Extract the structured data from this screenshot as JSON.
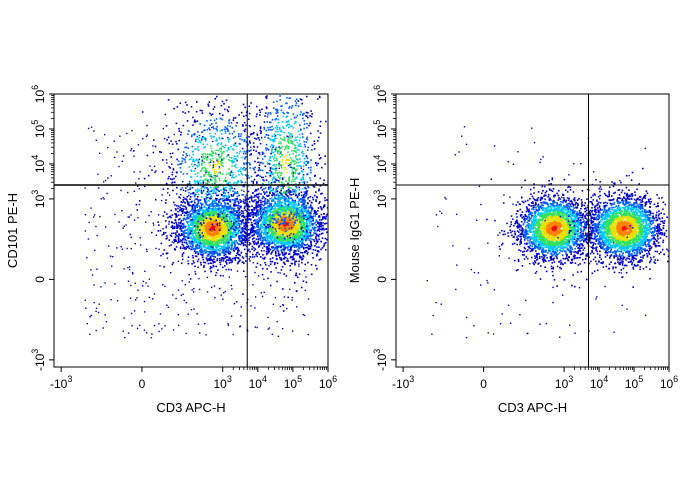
{
  "chart_data": [
    {
      "type": "scatter",
      "subtype": "flow-cytometry-density",
      "title": "",
      "xlabel": "CD3 APC-H",
      "ylabel": "CD101 PE-H",
      "x_ticks": [
        {
          "value": "-1e3",
          "base": "-10",
          "exp": "3"
        },
        {
          "value": "0",
          "base": "0",
          "exp": ""
        },
        {
          "value": "1e3",
          "base": "10",
          "exp": "3"
        },
        {
          "value": "1e4",
          "base": "10",
          "exp": "4"
        },
        {
          "value": "1e5",
          "base": "10",
          "exp": "5"
        },
        {
          "value": "1e6",
          "base": "10",
          "exp": "6"
        }
      ],
      "y_ticks": [
        {
          "value": "-1e3",
          "base": "-10",
          "exp": "3"
        },
        {
          "value": "0",
          "base": "0",
          "exp": ""
        },
        {
          "value": "1e3",
          "base": "10",
          "exp": "3"
        },
        {
          "value": "1e4",
          "base": "10",
          "exp": "4"
        },
        {
          "value": "1e5",
          "base": "10",
          "exp": "5"
        },
        {
          "value": "1e6",
          "base": "10",
          "exp": "6"
        }
      ],
      "scale": "biexponential",
      "quadrant_gate": {
        "x": 5000,
        "y": 2500
      },
      "populations": [
        {
          "name": "CD3- CD101-",
          "x": 500,
          "y": 150,
          "density": "high"
        },
        {
          "name": "CD3- CD101+",
          "x": 600,
          "y": 9000,
          "density": "medium"
        },
        {
          "name": "CD3+ CD101-",
          "x": 60000,
          "y": 200,
          "density": "high"
        },
        {
          "name": "CD3+ CD101+",
          "x": 60000,
          "y": 10000,
          "density": "medium"
        }
      ]
    },
    {
      "type": "scatter",
      "subtype": "flow-cytometry-density",
      "title": "",
      "xlabel": "CD3 APC-H",
      "ylabel": "Mouse IgG1 PE-H",
      "x_ticks": [
        {
          "value": "-1e3",
          "base": "-10",
          "exp": "3"
        },
        {
          "value": "0",
          "base": "0",
          "exp": ""
        },
        {
          "value": "1e3",
          "base": "10",
          "exp": "3"
        },
        {
          "value": "1e4",
          "base": "10",
          "exp": "4"
        },
        {
          "value": "1e5",
          "base": "10",
          "exp": "5"
        },
        {
          "value": "1e6",
          "base": "10",
          "exp": "6"
        }
      ],
      "y_ticks": [
        {
          "value": "-1e3",
          "base": "-10",
          "exp": "3"
        },
        {
          "value": "0",
          "base": "0",
          "exp": ""
        },
        {
          "value": "1e3",
          "base": "10",
          "exp": "3"
        },
        {
          "value": "1e4",
          "base": "10",
          "exp": "4"
        },
        {
          "value": "1e5",
          "base": "10",
          "exp": "5"
        },
        {
          "value": "1e6",
          "base": "10",
          "exp": "6"
        }
      ],
      "scale": "biexponential",
      "quadrant_gate": {
        "x": 5000,
        "y": 2500
      },
      "populations": [
        {
          "name": "CD3- IgG1-",
          "x": 500,
          "y": 150,
          "density": "high"
        },
        {
          "name": "CD3+ IgG1-",
          "x": 50000,
          "y": 150,
          "density": "high"
        }
      ]
    }
  ],
  "colors": {
    "density_scale": [
      "#0000cc",
      "#0060ff",
      "#00c8ff",
      "#30e060",
      "#e8e000",
      "#ff8000",
      "#ff0000"
    ],
    "axis": "#000000",
    "gate": "#000000"
  }
}
